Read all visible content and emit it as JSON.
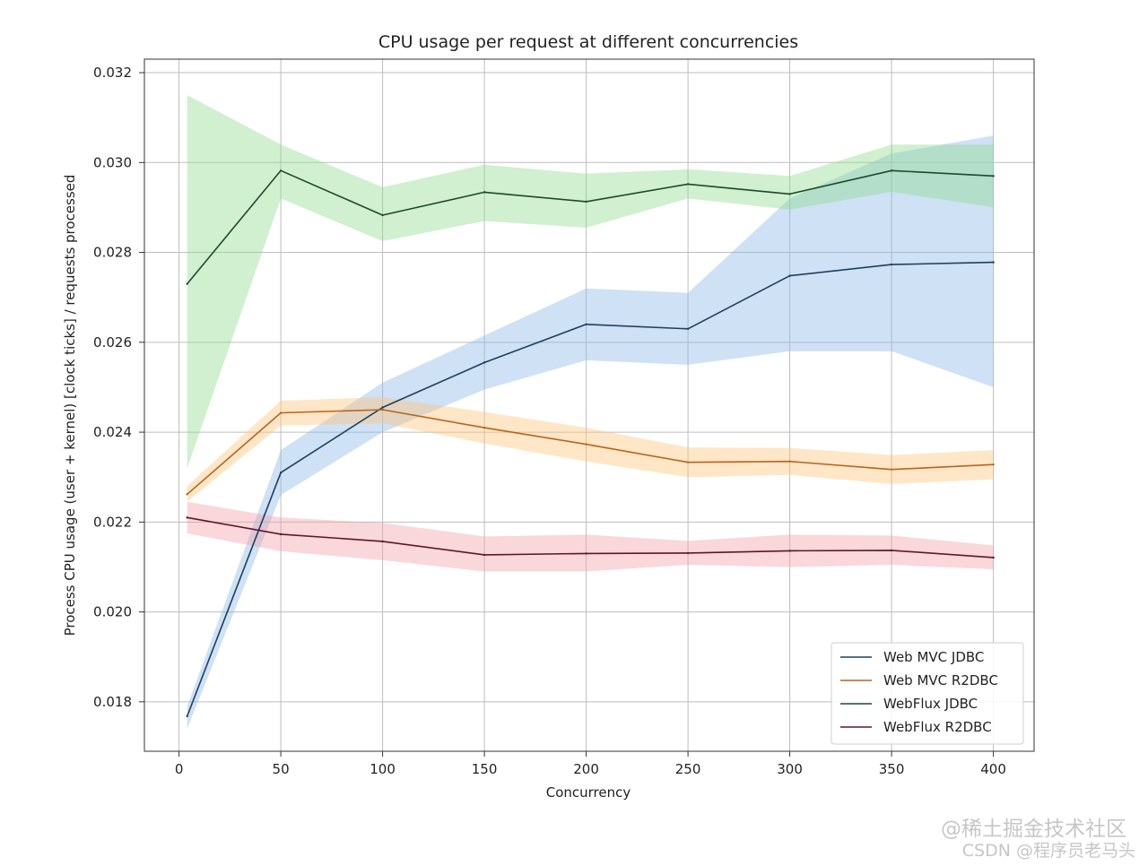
{
  "chart_data": {
    "type": "line",
    "title": "CPU usage per request at different concurrencies",
    "xlabel": "Concurrency",
    "ylabel": "Process CPU usage (user + kernel) [clock ticks] / requests processed",
    "xlim": [
      -17,
      420
    ],
    "ylim": [
      0.0169,
      0.0323
    ],
    "xticks": [
      0,
      50,
      100,
      150,
      200,
      250,
      300,
      350,
      400
    ],
    "yticks": [
      0.018,
      0.02,
      0.022,
      0.024,
      0.026,
      0.028,
      0.03,
      0.032
    ],
    "ytick_labels": [
      "0.018",
      "0.020",
      "0.022",
      "0.024",
      "0.026",
      "0.028",
      "0.030",
      "0.032"
    ],
    "grid": true,
    "legend_position": "lower-right",
    "x": [
      4,
      50,
      100,
      150,
      200,
      250,
      300,
      350,
      400
    ],
    "series": [
      {
        "name": "Web MVC JDBC",
        "line_color": "#1f3f5c",
        "band_color": "#8ab8e8",
        "values": [
          0.01768,
          0.0231,
          0.02455,
          0.02555,
          0.0264,
          0.0263,
          0.02748,
          0.02773,
          0.02778
        ],
        "lower": [
          0.0174,
          0.0226,
          0.024,
          0.02495,
          0.0256,
          0.0255,
          0.0258,
          0.0258,
          0.025
        ],
        "upper": [
          0.0179,
          0.0236,
          0.0251,
          0.02615,
          0.0272,
          0.0271,
          0.0292,
          0.0302,
          0.0306
        ]
      },
      {
        "name": "Web MVC R2DBC",
        "line_color": "#b8641e",
        "band_color": "#ffc477",
        "values": [
          0.02262,
          0.02443,
          0.0245,
          0.0241,
          0.02373,
          0.02333,
          0.02335,
          0.02317,
          0.02328
        ],
        "lower": [
          0.02245,
          0.02415,
          0.0242,
          0.02375,
          0.02335,
          0.023,
          0.02305,
          0.02285,
          0.02295
        ],
        "upper": [
          0.0228,
          0.0247,
          0.02478,
          0.02445,
          0.0241,
          0.02366,
          0.02365,
          0.02349,
          0.0236
        ]
      },
      {
        "name": "WebFlux JDBC",
        "line_color": "#1d4a2c",
        "band_color": "#8fdc8f",
        "values": [
          0.0273,
          0.02982,
          0.02883,
          0.02934,
          0.02913,
          0.02952,
          0.0293,
          0.02982,
          0.0297
        ],
        "lower": [
          0.0232,
          0.0292,
          0.02825,
          0.0287,
          0.02855,
          0.0292,
          0.02895,
          0.02935,
          0.029
        ],
        "upper": [
          0.0315,
          0.0304,
          0.02945,
          0.02995,
          0.02975,
          0.02985,
          0.0297,
          0.0304,
          0.0304
        ]
      },
      {
        "name": "WebFlux R2DBC",
        "line_color": "#5e1728",
        "band_color": "#f4a0aa",
        "values": [
          0.0221,
          0.02173,
          0.02157,
          0.02127,
          0.0213,
          0.02131,
          0.02136,
          0.02137,
          0.02121
        ],
        "lower": [
          0.02175,
          0.02135,
          0.02115,
          0.0209,
          0.0209,
          0.02105,
          0.021,
          0.02105,
          0.02095
        ],
        "upper": [
          0.02245,
          0.0221,
          0.02198,
          0.02168,
          0.02172,
          0.02158,
          0.02172,
          0.0217,
          0.02148
        ]
      }
    ]
  },
  "watermarks": {
    "line1": "@稀土掘金技术社区",
    "line2": "CSDN @程序员老马头"
  }
}
